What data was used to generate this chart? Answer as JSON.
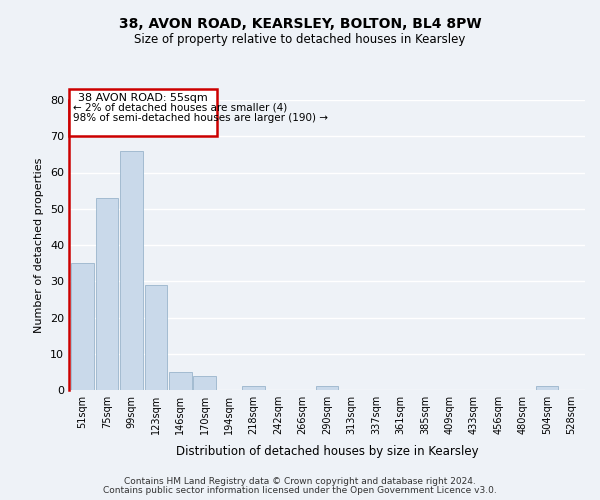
{
  "title": "38, AVON ROAD, KEARSLEY, BOLTON, BL4 8PW",
  "subtitle": "Size of property relative to detached houses in Kearsley",
  "xlabel": "Distribution of detached houses by size in Kearsley",
  "ylabel": "Number of detached properties",
  "bar_color": "#c9d9ea",
  "bar_edge_color": "#9ab5cc",
  "background_color": "#eef2f7",
  "grid_color": "#ffffff",
  "annotation_box_color": "#cc0000",
  "annotation_line1": "38 AVON ROAD: 55sqm",
  "annotation_line2": "← 2% of detached houses are smaller (4)",
  "annotation_line3": "98% of semi-detached houses are larger (190) →",
  "bin_labels": [
    "51sqm",
    "75sqm",
    "99sqm",
    "123sqm",
    "146sqm",
    "170sqm",
    "194sqm",
    "218sqm",
    "242sqm",
    "266sqm",
    "290sqm",
    "313sqm",
    "337sqm",
    "361sqm",
    "385sqm",
    "409sqm",
    "433sqm",
    "456sqm",
    "480sqm",
    "504sqm",
    "528sqm"
  ],
  "bar_heights": [
    35,
    53,
    66,
    29,
    5,
    4,
    0,
    1,
    0,
    0,
    1,
    0,
    0,
    0,
    0,
    0,
    0,
    0,
    0,
    1,
    0
  ],
  "ylim": [
    0,
    80
  ],
  "yticks": [
    0,
    10,
    20,
    30,
    40,
    50,
    60,
    70,
    80
  ],
  "footer_line1": "Contains HM Land Registry data © Crown copyright and database right 2024.",
  "footer_line2": "Contains public sector information licensed under the Open Government Licence v3.0."
}
